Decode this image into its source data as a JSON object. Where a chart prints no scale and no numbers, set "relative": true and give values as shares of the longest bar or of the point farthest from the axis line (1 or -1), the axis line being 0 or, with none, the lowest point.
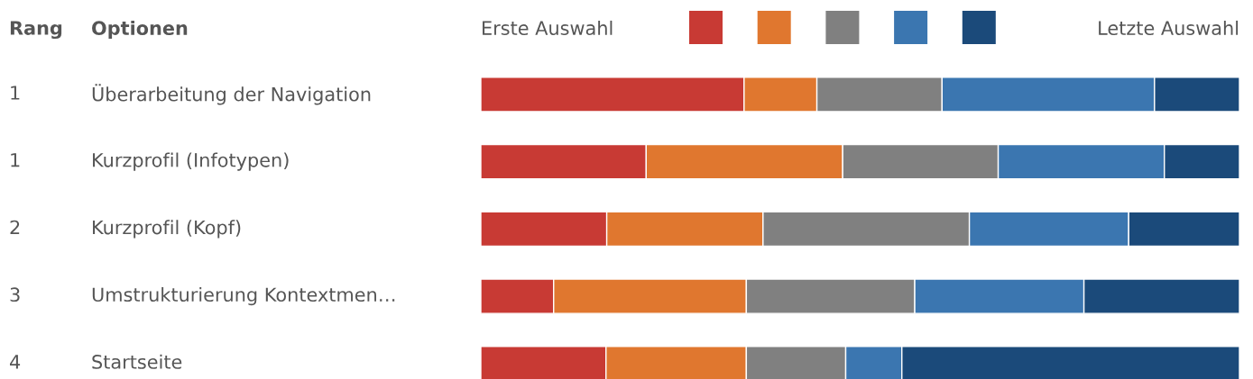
{
  "chart_data": {
    "type": "bar",
    "orientation": "horizontal",
    "stacked": true,
    "relative": true,
    "categories": [
      "Überarbeitung der Navigation",
      "Kurzprofil (Infotypen)",
      "Kurzprofil (Kopf)",
      "Umstrukturierung Kontextmen…",
      "Startseite"
    ],
    "series": [
      {
        "color": "#c83a34",
        "values": [
          0.347,
          0.218,
          0.166,
          0.096,
          0.165
        ]
      },
      {
        "color": "#e0772f",
        "values": [
          0.096,
          0.259,
          0.206,
          0.254,
          0.185
        ]
      },
      {
        "color": "#808080",
        "values": [
          0.165,
          0.205,
          0.272,
          0.222,
          0.131
        ]
      },
      {
        "color": "#3b76b0",
        "values": [
          0.28,
          0.219,
          0.21,
          0.223,
          0.074
        ]
      },
      {
        "color": "#1b4a7a",
        "values": [
          0.112,
          0.099,
          0.146,
          0.205,
          0.445
        ]
      }
    ],
    "annotations": [
      "Rang",
      "Optionen",
      "Erste Auswahl",
      "Letzte Auswahl",
      "1",
      "1",
      "2",
      "3",
      "4"
    ]
  }
}
